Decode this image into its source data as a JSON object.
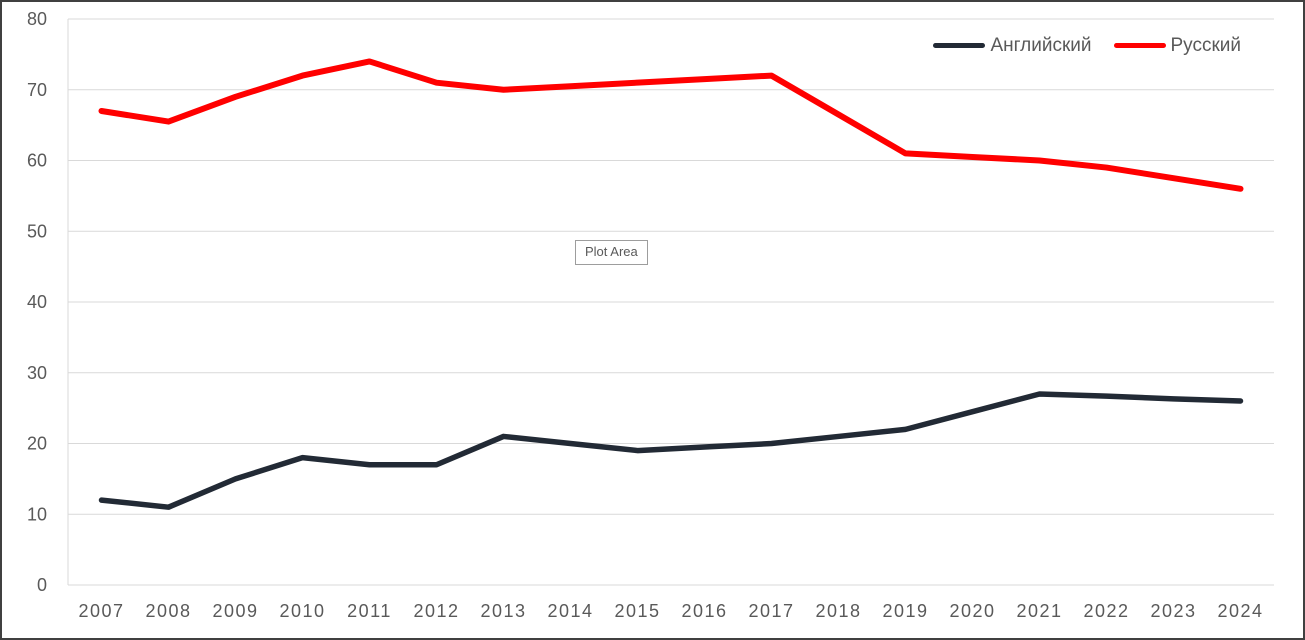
{
  "chart_data": {
    "type": "line",
    "title": "",
    "categories": [
      "2007",
      "2008",
      "2009",
      "2010",
      "2011",
      "2012",
      "2013",
      "2014",
      "2015",
      "2016",
      "2017",
      "2018",
      "2019",
      "2020",
      "2021",
      "2022",
      "2023",
      "2024"
    ],
    "series": [
      {
        "name": "Английский",
        "color": "#222A35",
        "values": [
          12,
          11,
          15,
          18,
          17,
          17,
          21,
          20,
          19,
          19.5,
          20,
          21,
          22,
          24.5,
          27,
          26.7,
          26.3,
          26
        ]
      },
      {
        "name": "Русский",
        "color": "#FF0000",
        "values": [
          67,
          65.5,
          69,
          72,
          74,
          71,
          70,
          70.5,
          71,
          71.5,
          72,
          66.5,
          61,
          60.5,
          60,
          59,
          57.5,
          56
        ]
      }
    ],
    "xlabel": "",
    "ylabel": "",
    "ylim": [
      0,
      80
    ],
    "ytick_step": 10,
    "grid": true,
    "legend_position": "top-right",
    "annotations": [
      "Plot Area"
    ]
  },
  "style_colors": {
    "gridline": "#D9D9D9",
    "axis_text": "#595959",
    "frame_border": "#404040",
    "tooltip_border": "#9d9d9d"
  }
}
